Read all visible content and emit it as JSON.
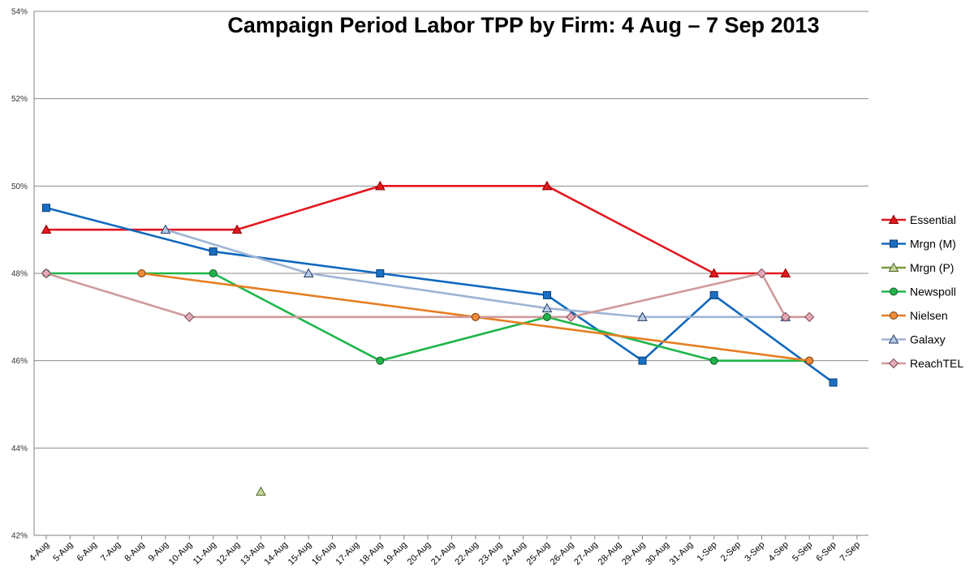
{
  "chart_data": {
    "type": "line",
    "title": "Campaign Period Labor TPP by Firm: 4 Aug – 7 Sep 2013",
    "xlabel": "",
    "ylabel": "",
    "ylim": [
      42,
      54
    ],
    "y_ticks": [
      "42%",
      "44%",
      "46%",
      "48%",
      "50%",
      "52%",
      "54%"
    ],
    "y_tick_values": [
      42,
      44,
      46,
      48,
      50,
      52,
      54
    ],
    "categories": [
      "4-Aug",
      "5-Aug",
      "6-Aug",
      "7-Aug",
      "8-Aug",
      "9-Aug",
      "10-Aug",
      "11-Aug",
      "12-Aug",
      "13-Aug",
      "14-Aug",
      "15-Aug",
      "16-Aug",
      "17-Aug",
      "18-Aug",
      "19-Aug",
      "20-Aug",
      "21-Aug",
      "22-Aug",
      "23-Aug",
      "24-Aug",
      "25-Aug",
      "26-Aug",
      "27-Aug",
      "28-Aug",
      "29-Aug",
      "30-Aug",
      "31-Aug",
      "1-Sep",
      "2-Sep",
      "3-Sep",
      "4-Sep",
      "5-Sep",
      "6-Sep",
      "7-Sep"
    ],
    "grid": true,
    "legend_position": "right",
    "series": [
      {
        "name": "Essential",
        "color": "#e3171f",
        "marker": "triangle",
        "marker_fill": "#e3171f",
        "marker_stroke": "#8b0000",
        "points": [
          [
            "4-Aug",
            49
          ],
          [
            "12-Aug",
            49
          ],
          [
            "18-Aug",
            50
          ],
          [
            "25-Aug",
            50
          ],
          [
            "1-Sep",
            48
          ],
          [
            "4-Sep",
            48
          ]
        ]
      },
      {
        "name": "Mrgn (M)",
        "color": "#1068bf",
        "marker": "square",
        "marker_fill": "#1a6fc4",
        "marker_stroke": "#0b3d6e",
        "points": [
          [
            "4-Aug",
            49.5
          ],
          [
            "11-Aug",
            48.5
          ],
          [
            "18-Aug",
            48
          ],
          [
            "25-Aug",
            47.5
          ],
          [
            "29-Aug",
            46
          ],
          [
            "1-Sep",
            47.5
          ],
          [
            "6-Sep",
            45.5
          ]
        ]
      },
      {
        "name": "Mrgn (P)",
        "color": "#7a9a3a",
        "marker": "triangle",
        "marker_fill": "#c3d69b",
        "marker_stroke": "#4f6228",
        "points": [
          [
            "13-Aug",
            43
          ]
        ]
      },
      {
        "name": "Newspoll",
        "color": "#1eb64a",
        "marker": "circle",
        "marker_fill": "#22b24c",
        "marker_stroke": "#0b5e23",
        "points": [
          [
            "4-Aug",
            48
          ],
          [
            "11-Aug",
            48
          ],
          [
            "18-Aug",
            46
          ],
          [
            "25-Aug",
            47
          ],
          [
            "1-Sep",
            46
          ],
          [
            "5-Sep",
            46
          ]
        ]
      },
      {
        "name": "Nielsen",
        "color": "#e67e22",
        "marker": "circle",
        "marker_fill": "#f08a3a",
        "marker_stroke": "#7a3b08",
        "points": [
          [
            "8-Aug",
            48
          ],
          [
            "22-Aug",
            47
          ],
          [
            "5-Sep",
            46
          ]
        ]
      },
      {
        "name": "Galaxy",
        "color": "#9fb4d4",
        "marker": "triangle",
        "marker_fill": "#b8c9e1",
        "marker_stroke": "#1f3a64",
        "points": [
          [
            "9-Aug",
            49
          ],
          [
            "15-Aug",
            48
          ],
          [
            "25-Aug",
            47.2
          ],
          [
            "29-Aug",
            47
          ],
          [
            "4-Sep",
            47
          ]
        ]
      },
      {
        "name": "ReachTEL",
        "color": "#cf9a9a",
        "marker": "diamond",
        "marker_fill": "#e6a9b8",
        "marker_stroke": "#7b4a55",
        "points": [
          [
            "4-Aug",
            48
          ],
          [
            "10-Aug",
            47
          ],
          [
            "26-Aug",
            47
          ],
          [
            "3-Sep",
            48
          ],
          [
            "4-Sep",
            47
          ],
          [
            "5-Sep",
            47
          ]
        ]
      }
    ]
  }
}
